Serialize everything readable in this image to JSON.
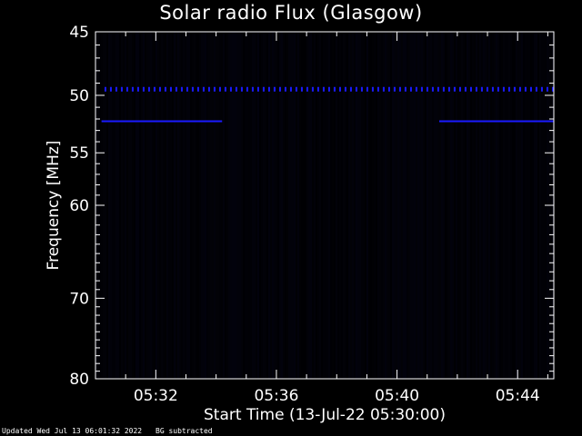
{
  "footer": {
    "updated": "Updated Wed Jul 13 06:01:32 2022",
    "bg_note": "BG subtracted"
  },
  "chart_data": {
    "type": "heatmap",
    "title": "Solar radio Flux (Glasgow)",
    "xlabel": "Start Time (13-Jul-22 05:30:00)",
    "ylabel": "Frequency [MHz]",
    "x_ticks": [
      "05:32",
      "05:36",
      "05:40",
      "05:44"
    ],
    "x_tick_minutes": [
      2,
      6,
      10,
      14
    ],
    "xlim_minutes": [
      0,
      15.2
    ],
    "y_ticks": [
      45,
      50,
      55,
      60,
      70,
      80
    ],
    "ylim": [
      45,
      80
    ],
    "y_scale": "log",
    "y_inverted": true,
    "grid": false,
    "features": [
      {
        "name": "dashed band",
        "frequency_mhz": 49.5,
        "start_min": 0.3,
        "end_min": 15.2,
        "style": "dashed"
      },
      {
        "name": "band segment",
        "frequency_mhz": 52.2,
        "start_min": 0.2,
        "end_min": 4.2,
        "style": "solid"
      },
      {
        "name": "band segment",
        "frequency_mhz": 52.2,
        "start_min": 11.4,
        "end_min": 15.2,
        "style": "solid"
      }
    ],
    "colors": {
      "background": "#000000",
      "axes": "#ffffff",
      "signal": "#1a1aff"
    }
  }
}
